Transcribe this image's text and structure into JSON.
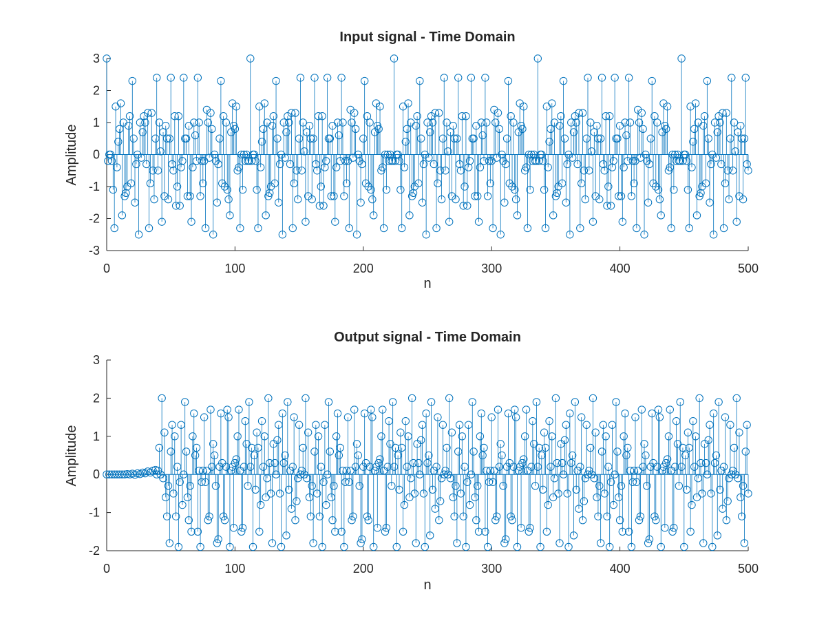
{
  "chart_data": [
    {
      "type": "stem",
      "title": "Input signal - Time Domain",
      "xlabel": "n",
      "ylabel": "Amplitude",
      "xlim": [
        0,
        500
      ],
      "ylim": [
        -3,
        3
      ],
      "xticks": [
        "0",
        "100",
        "200",
        "300",
        "400",
        "500"
      ],
      "yticks": [
        "3",
        "2",
        "1",
        "0",
        "-1",
        "-2",
        "-3"
      ],
      "grid": false,
      "description_of_data": "Periodic multi-tone signal, period ~112 samples, amplitude range about -2.5 to 3.0, peaks of 3.0 at n = 0, 112, 224, 336, 448",
      "x": [
        0,
        1,
        2,
        3,
        4,
        5,
        6,
        7,
        8,
        9,
        10,
        11,
        12,
        13,
        14,
        15,
        16,
        17,
        18,
        19,
        20,
        21,
        22,
        23,
        24,
        25,
        26,
        27,
        28,
        29,
        30,
        31,
        32,
        33,
        34,
        35,
        36,
        37,
        38,
        39,
        40,
        41,
        42,
        43,
        44,
        45,
        46,
        47,
        48,
        49,
        50,
        51,
        52,
        53,
        54,
        55,
        56,
        57,
        58,
        59,
        60,
        61,
        62,
        63,
        64,
        65,
        66,
        67,
        68,
        69,
        70,
        71,
        72,
        73,
        74,
        75,
        76,
        77,
        78,
        79,
        80,
        81,
        82,
        83,
        84,
        85,
        86,
        87,
        88,
        89,
        90,
        91,
        92,
        93,
        94,
        95,
        96,
        97,
        98,
        99,
        100,
        101,
        102,
        103,
        104,
        105,
        106,
        107,
        108,
        109,
        110,
        111
      ],
      "values": [
        3.0,
        -0.2,
        0.0,
        0.0,
        -0.2,
        -1.1,
        -2.3,
        1.5,
        -0.4,
        0.4,
        0.8,
        1.6,
        -1.9,
        1.0,
        -1.3,
        -1.2,
        -1.0,
        0.9,
        1.2,
        -0.9,
        2.3,
        0.5,
        -1.5,
        -0.3,
        0.0,
        -2.5,
        1.0,
        -0.1,
        0.7,
        1.2,
        1.0,
        -0.3,
        1.3,
        -2.3,
        -0.9,
        1.3,
        -0.5,
        -1.4,
        0.5,
        2.4,
        -0.5,
        1.0,
        0.1,
        -2.1,
        0.7,
        -1.3,
        0.9,
        0.5,
        -1.4,
        0.5,
        2.4,
        -0.3,
        -0.5,
        1.2,
        -1.6,
        -1.0,
        1.2,
        -1.6,
        -0.4,
        -0.2,
        2.4,
        0.5,
        0.5,
        -1.3,
        0.9,
        -1.3,
        -2.1,
        -0.4,
        1.0,
        0.6,
        -0.2,
        2.4,
        1.0,
        -1.3,
        -0.2,
        -0.9,
        -0.2,
        -2.3,
        1.4,
        1.0,
        -0.1,
        1.3,
        0.8,
        -2.5,
        0.0,
        -0.2,
        -1.5,
        -0.3,
        0.5,
        2.3,
        -0.9,
        1.2,
        -1.0,
        1.0,
        -1.1,
        -1.4,
        -1.9,
        0.7,
        1.6,
        0.9,
        0.8,
        1.5,
        -0.5,
        -0.4,
        -2.3,
        0.0,
        -1.1,
        0.0,
        -0.2,
        0.0,
        -0.2,
        -0.2
      ]
    },
    {
      "type": "stem",
      "title": "Output signal - Time Domain",
      "xlabel": "n",
      "ylabel": "Amplitude",
      "xlim": [
        0,
        500
      ],
      "ylim": [
        -2,
        3
      ],
      "xticks": [
        "0",
        "100",
        "200",
        "300",
        "400",
        "500"
      ],
      "yticks": [
        "3",
        "2",
        "1",
        "0",
        "-1",
        "-2"
      ],
      "grid": false,
      "description_of_data": "Near-zero transient for n < ~38, then periodic oscillation with amplitude range about -1.9 to 2.0",
      "transient_x": [
        0,
        2,
        4,
        6,
        8,
        10,
        12,
        14,
        16,
        18,
        20,
        22,
        24,
        26,
        28,
        30,
        32,
        34,
        36,
        38
      ],
      "transient_values": [
        0.0,
        0.0,
        0.0,
        0.0,
        0.0,
        0.0,
        0.0,
        0.0,
        0.01,
        0.0,
        0.02,
        -0.01,
        0.03,
        0.01,
        0.05,
        0.03,
        0.08,
        0.05,
        0.1,
        0.12
      ],
      "x": [
        39,
        40,
        41,
        42,
        43,
        44,
        45,
        46,
        47,
        48,
        49,
        50,
        51,
        52,
        53,
        54,
        55,
        56,
        57,
        58,
        59,
        60,
        61,
        62,
        63,
        64,
        65,
        66,
        67,
        68,
        69,
        70,
        71,
        72,
        73,
        74,
        75,
        76,
        77,
        78,
        79,
        80,
        81,
        82,
        83,
        84,
        85,
        86,
        87,
        88,
        89,
        90,
        91,
        92,
        93,
        94,
        95,
        96,
        97,
        98,
        99,
        100,
        101,
        102,
        103,
        104,
        105,
        106,
        107,
        108,
        109,
        110,
        111,
        112,
        113,
        114,
        115,
        116,
        117,
        118,
        119,
        120,
        121,
        122,
        123,
        124,
        125,
        126,
        127,
        128,
        129,
        130,
        131,
        132,
        133,
        134,
        135,
        136,
        137,
        138,
        139,
        140,
        141,
        142,
        143,
        144,
        145,
        146,
        147,
        148,
        149,
        150
      ],
      "values": [
        0.0,
        0.1,
        0.7,
        0.0,
        2.0,
        -0.1,
        1.1,
        -0.6,
        -1.1,
        -0.3,
        -1.8,
        0.6,
        1.3,
        -0.5,
        1.0,
        -1.1,
        0.2,
        -1.9,
        -0.2,
        1.3,
        -0.8,
        0.0,
        1.9,
        0.6,
        -0.6,
        -1.2,
        -0.3,
        -1.5,
        1.0,
        1.6,
        0.5,
        0.7,
        -1.5,
        0.1,
        -1.9,
        -0.2,
        0.1,
        1.5,
        -0.2,
        0.1,
        -1.2,
        -1.1,
        1.7,
        0.2,
        0.8,
        0.5,
        -0.3,
        -1.8,
        -1.7,
        0.2,
        1.6,
        0.3,
        -1.1,
        -1.2,
        0.2,
        1.7,
        1.5,
        -1.9,
        0.1,
        0.2,
        -1.4,
        0.3,
        0.4,
        1.0,
        1.7,
        0.1,
        -1.5,
        -1.4,
        0.2,
        1.4,
        0.8,
        -0.3,
        1.9,
        0.2,
        0.7,
        -1.9,
        0.5,
        -0.4,
        1.1,
        0.7,
        -1.5,
        -0.8,
        1.4,
        0.2,
        1.0,
        -0.6,
        -0.1,
        2.0,
        0.3,
        -0.5,
        -1.8,
        0.8,
        0.3,
        0.0,
        0.9,
        1.3,
        -0.5,
        -1.9,
        1.6,
        0.3,
        0.5,
        -1.6,
        1.9,
        -0.4,
        0.1,
        -0.9,
        0.2,
        1.5,
        -1.2,
        -0.7,
        -0.1,
        1.3
      ]
    }
  ]
}
